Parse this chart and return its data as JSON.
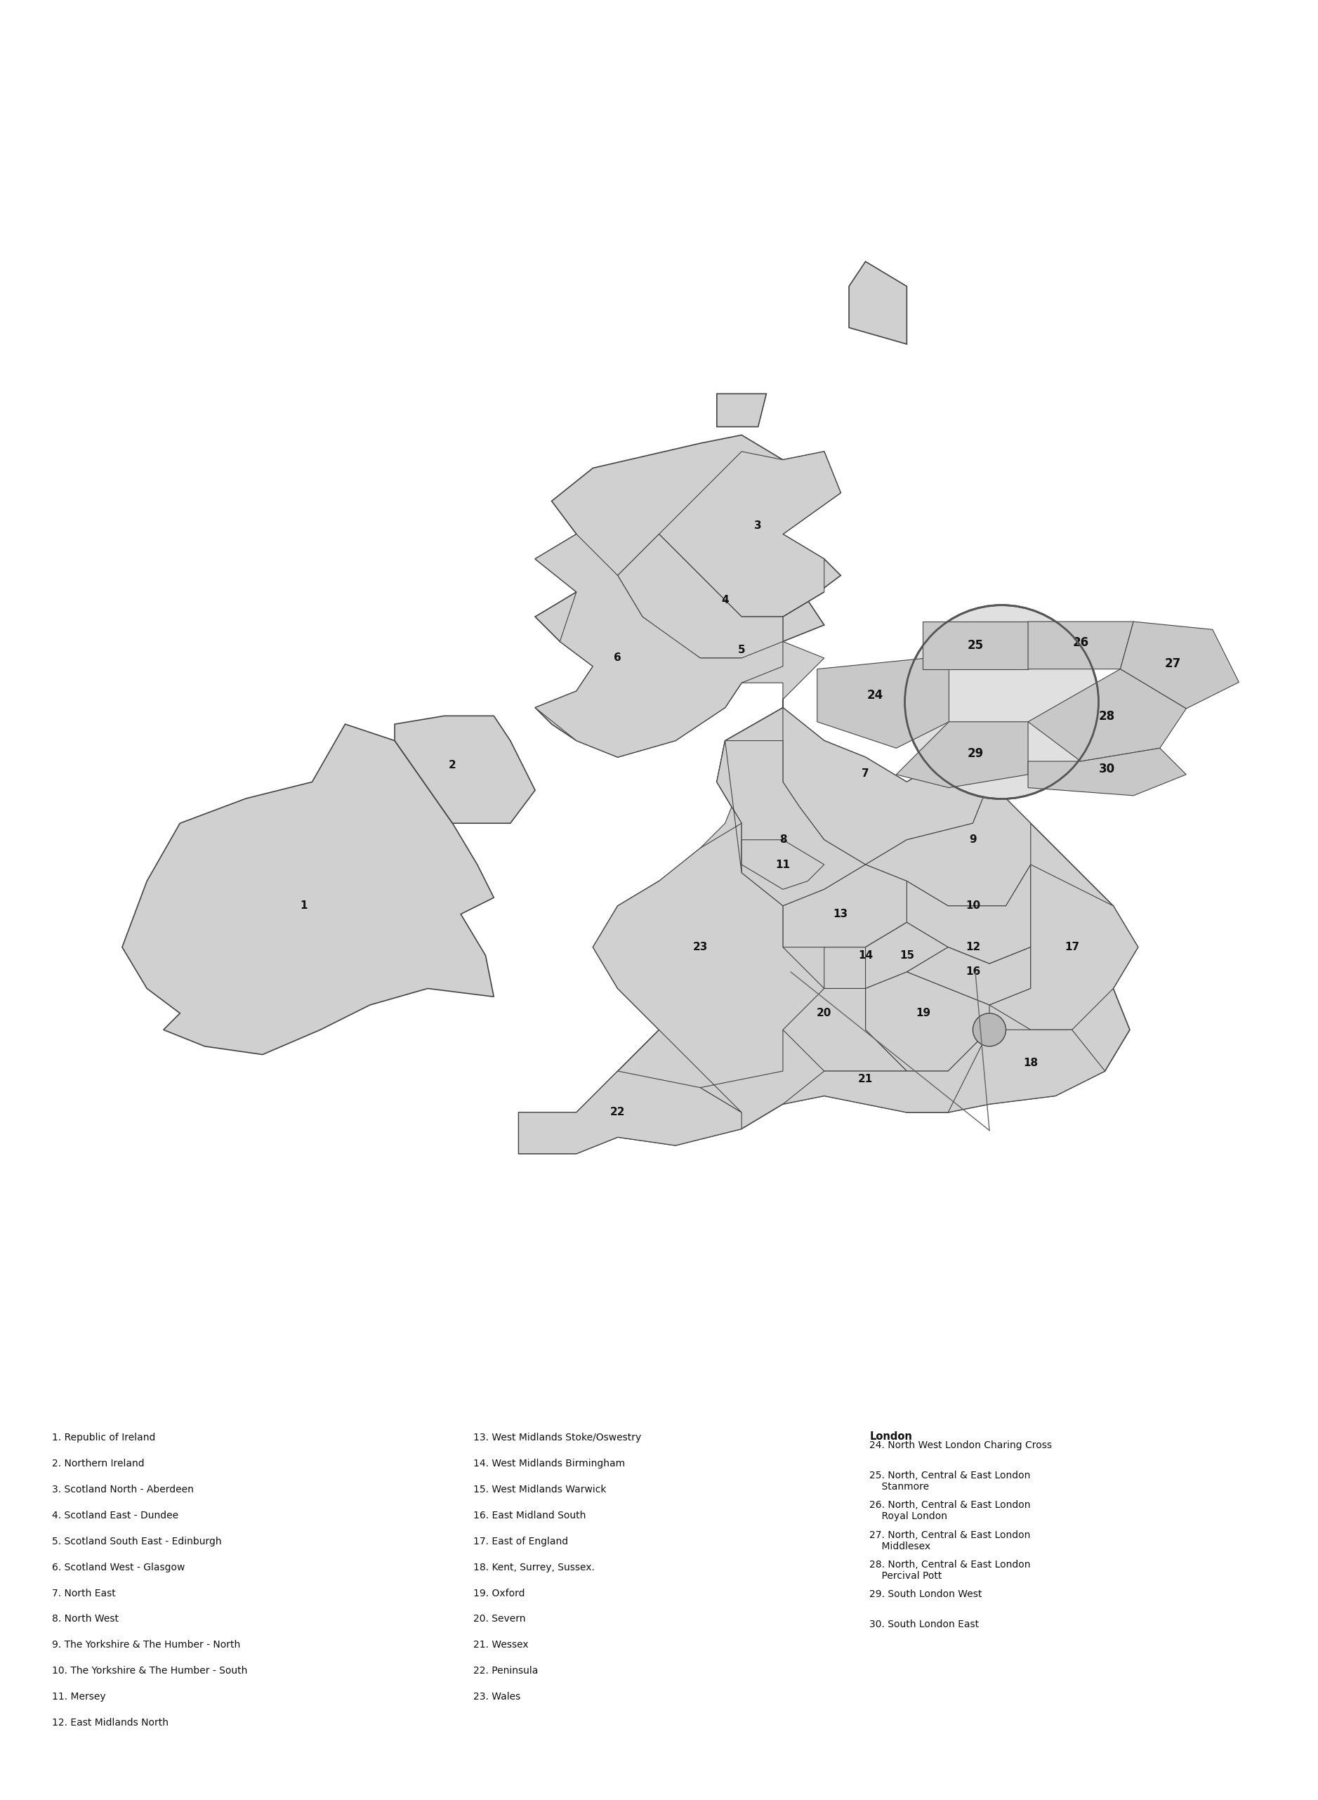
{
  "background_color": "#ffffff",
  "map_fill_color": "#d0d0d0",
  "map_edge_color": "#444444",
  "col1_labels": [
    "1. Republic of Ireland",
    "2. Northern Ireland",
    "3. Scotland North - Aberdeen",
    "4. Scotland East - Dundee",
    "5. Scotland South East - Edinburgh",
    "6. Scotland West - Glasgow",
    "7. North East",
    "8. North West",
    "9. The Yorkshire & The Humber - North",
    "10. The Yorkshire & The Humber - South",
    "11. Mersey",
    "12. East Midlands North"
  ],
  "col2_labels": [
    "13. West Midlands Stoke/Oswestry",
    "14. West Midlands Birmingham",
    "15. West Midlands Warwick",
    "16. East Midland South",
    "17. East of England",
    "18. Kent, Surrey, Sussex.",
    "19. Oxford",
    "20. Severn",
    "21. Wessex",
    "22. Peninsula",
    "23. Wales"
  ],
  "col3_title": "London",
  "col3_labels": [
    "24. North West London Charing Cross",
    "25. North, Central & East London\n    Stanmore",
    "26. North, Central & East London\n    Royal London",
    "27. North, Central & East London\n    Middlesex",
    "28. North, Central & East London\n    Percival Pott",
    "29. South London West",
    "30. South London East"
  ]
}
